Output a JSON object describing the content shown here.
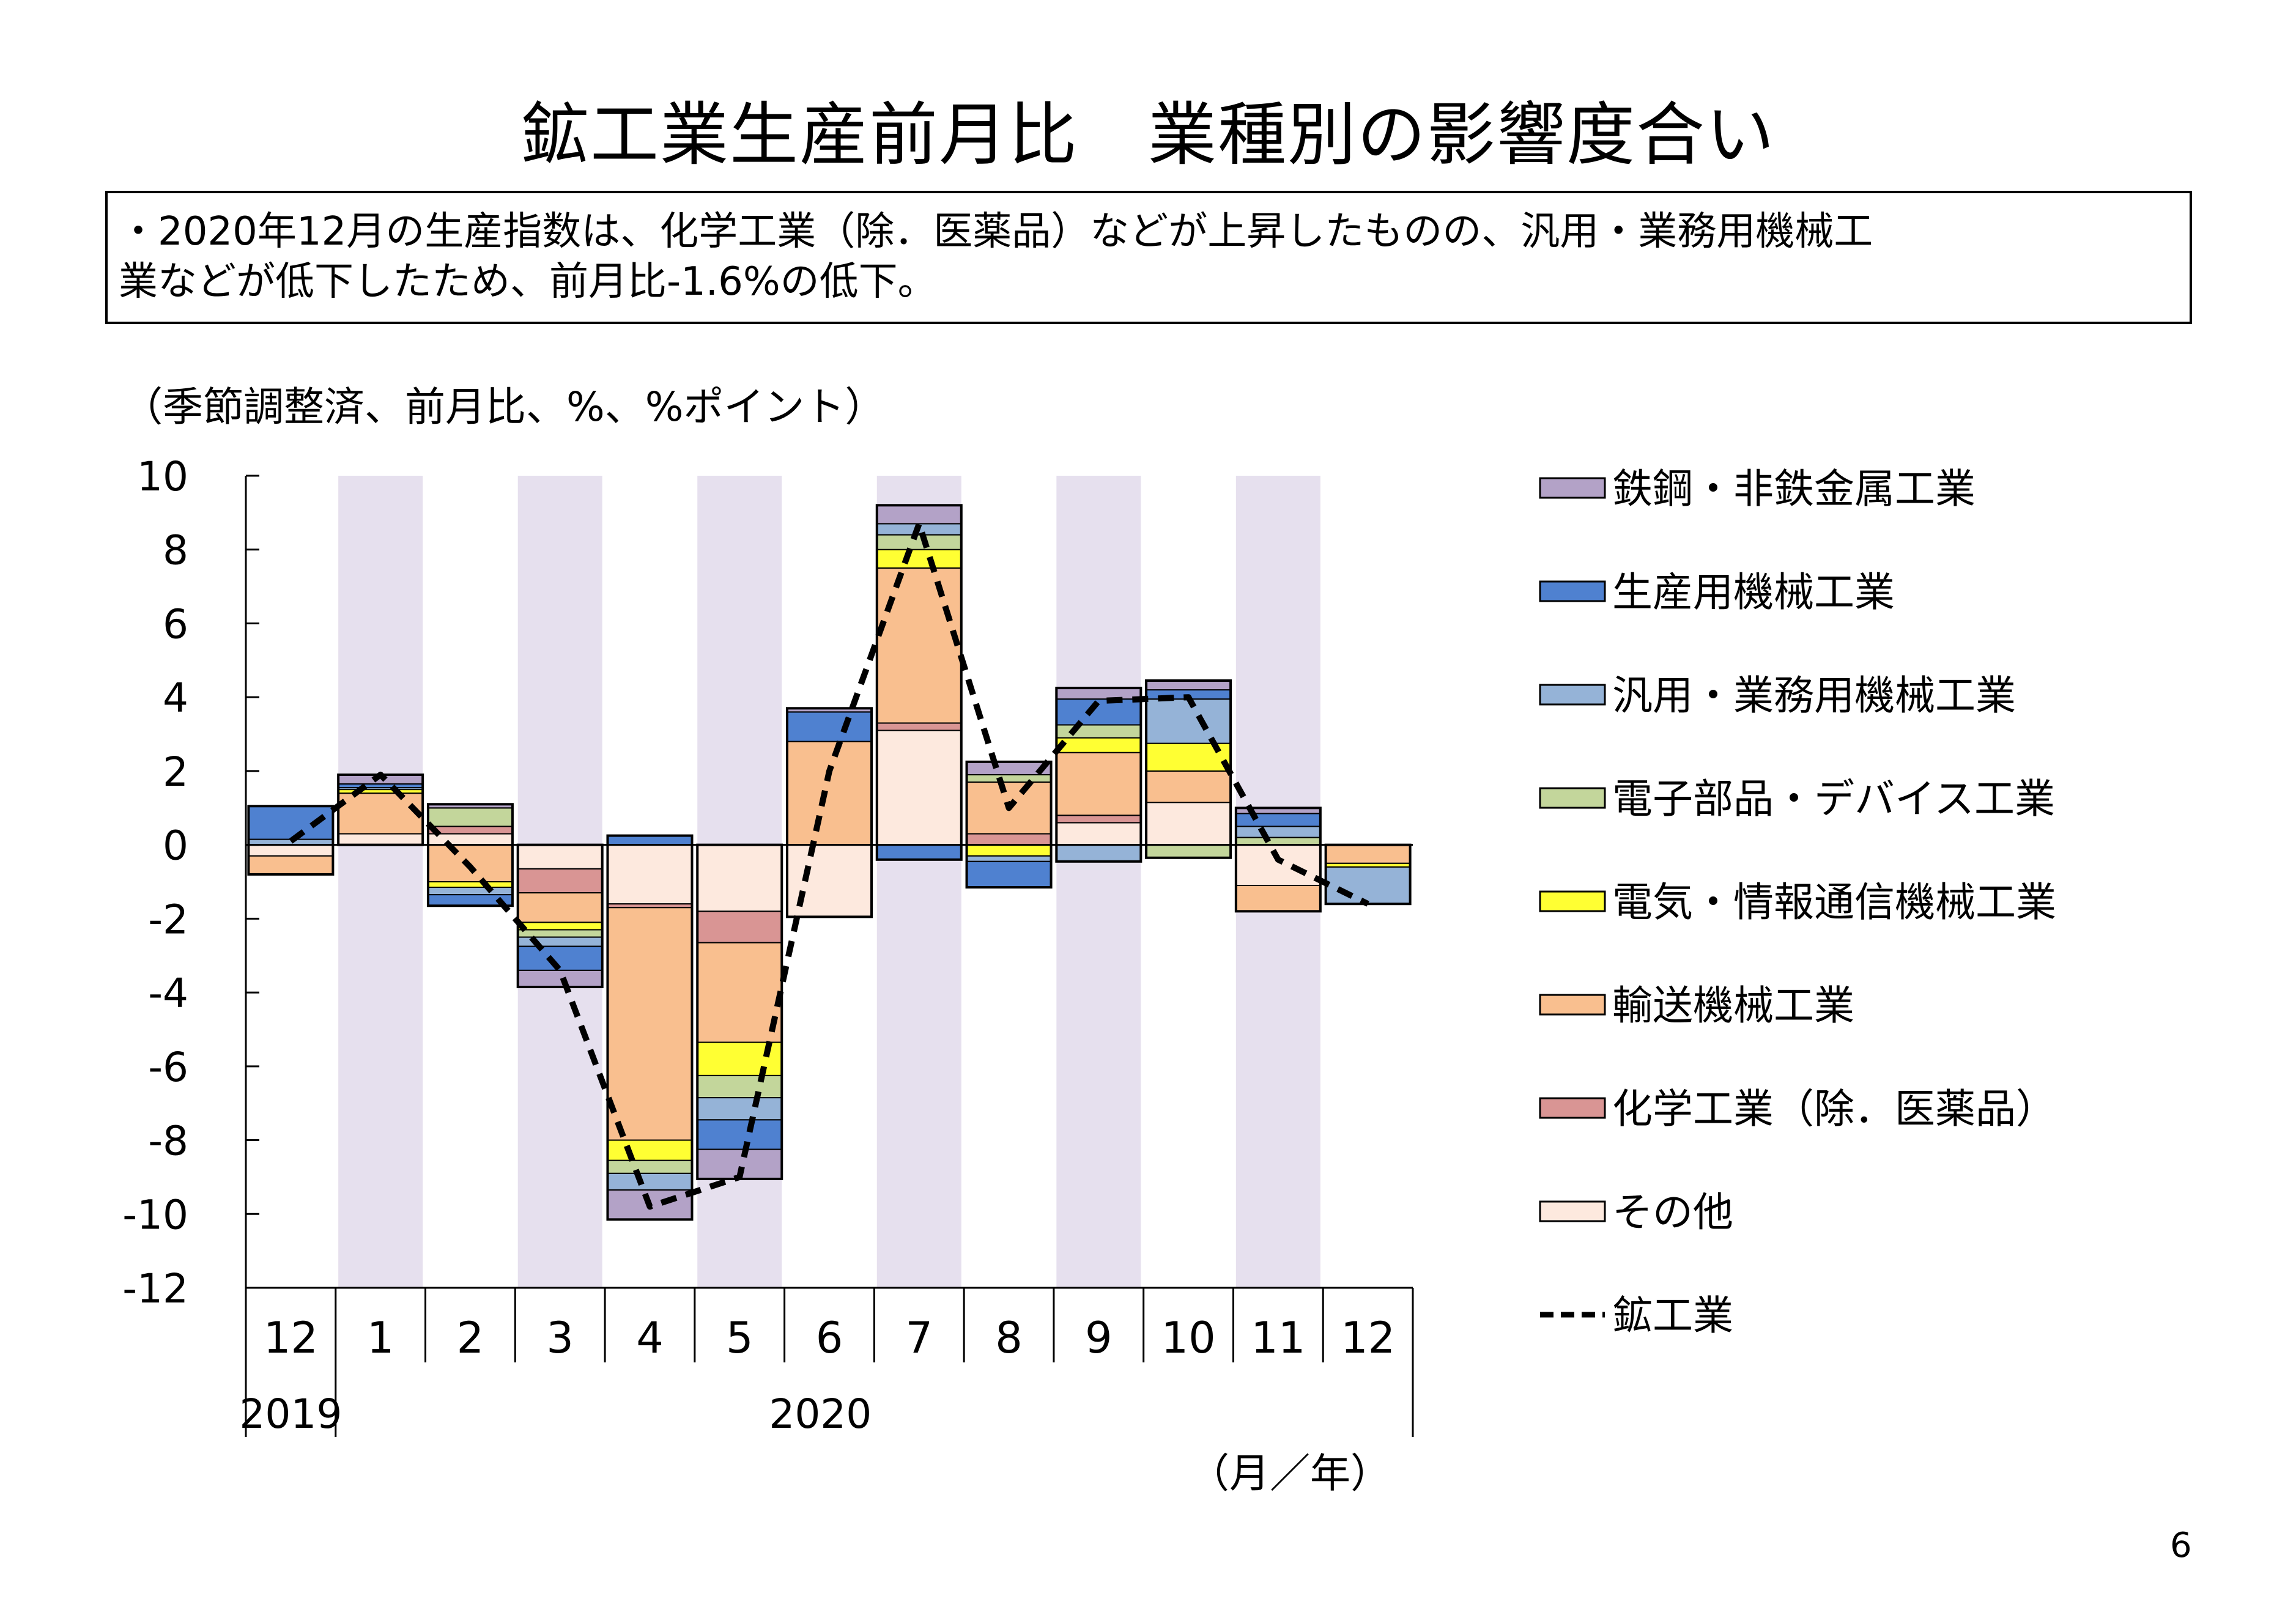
{
  "title": "鉱工業生産前月比　業種別の影響度合い",
  "summary_line1": "・2020年12月の生産指数は、化学工業（除．医薬品）などが上昇したものの、汎用・業務用機械工",
  "summary_line2": "業などが低下したため、前月比‑1.6%の低下。",
  "units_note": "（季節調整済、前月比、%、%ポイント）",
  "page_number": "6",
  "chart_data": {
    "type": "bar",
    "stacked": true,
    "categories": [
      "12",
      "1",
      "2",
      "3",
      "4",
      "5",
      "6",
      "7",
      "8",
      "9",
      "10",
      "11",
      "12"
    ],
    "year_labels": [
      {
        "label": "2019",
        "start": 0,
        "end": 0
      },
      {
        "label": "2020",
        "start": 1,
        "end": 12
      }
    ],
    "x_unit_label": "（月／年）",
    "ylim": [
      -12,
      10
    ],
    "yticks": [
      10,
      8,
      6,
      4,
      2,
      0,
      -2,
      -4,
      -6,
      -8,
      -10,
      -12
    ],
    "ytick_labels": [
      "10",
      "8",
      "6",
      "4",
      "2",
      "0",
      "‑2",
      "‑4",
      "‑6",
      "‑8",
      "‑10",
      "‑12"
    ],
    "shaded_columns": [
      1,
      3,
      5,
      7,
      9,
      11
    ],
    "shade_color": "#e6e0ee",
    "legend_position": "right",
    "series": [
      {
        "name": "その他",
        "color": "#fde9de",
        "values": [
          -0.3,
          0.3,
          0.3,
          -0.65,
          -1.6,
          -1.8,
          -1.95,
          3.1,
          0.0,
          0.6,
          1.15,
          -1.1,
          0.0
        ]
      },
      {
        "name": "化学工業（除．医薬品）",
        "color": "#d99594",
        "values": [
          0.0,
          0.0,
          0.2,
          -0.65,
          -0.1,
          -0.85,
          0.0,
          0.2,
          0.3,
          0.2,
          0.0,
          0.0,
          0.0
        ]
      },
      {
        "name": "輸送機械工業",
        "color": "#f9bf8f",
        "values": [
          -0.5,
          1.1,
          -1.0,
          -0.8,
          -6.3,
          -2.7,
          2.8,
          4.2,
          1.4,
          1.7,
          0.85,
          -0.7,
          -0.5
        ]
      },
      {
        "name": "電気・情報通信機械工業",
        "color": "#ffff33",
        "values": [
          0.0,
          0.1,
          -0.15,
          -0.2,
          -0.55,
          -0.9,
          0.0,
          0.5,
          -0.3,
          0.4,
          0.75,
          0.0,
          -0.1
        ]
      },
      {
        "name": "電子部品・デバイス工業",
        "color": "#c3d69b",
        "values": [
          0.0,
          0.0,
          0.5,
          -0.2,
          -0.35,
          -0.6,
          0.0,
          0.4,
          0.2,
          0.35,
          -0.35,
          0.2,
          0.0
        ]
      },
      {
        "name": "汎用・業務用機械工業",
        "color": "#95b3d7",
        "values": [
          0.15,
          0.05,
          -0.2,
          -0.25,
          -0.45,
          -0.6,
          0.0,
          0.3,
          -0.15,
          -0.45,
          1.2,
          0.3,
          -1.0
        ]
      },
      {
        "name": "生産用機械工業",
        "color": "#4f81d0",
        "values": [
          0.9,
          0.1,
          -0.3,
          -0.65,
          0.25,
          -0.8,
          0.8,
          -0.4,
          -0.7,
          0.7,
          0.25,
          0.35,
          0.0
        ]
      },
      {
        "name": "鉄鋼・非鉄金属工業",
        "color": "#b3a2c7",
        "values": [
          0.0,
          0.25,
          0.1,
          -0.45,
          -0.8,
          -0.8,
          0.1,
          0.5,
          0.35,
          0.3,
          0.25,
          0.15,
          0.0
        ]
      }
    ],
    "line": {
      "name": "鉱工業",
      "style": "dashed",
      "color": "#000000",
      "values": [
        0.1,
        1.9,
        -0.6,
        -3.4,
        -9.8,
        -9.0,
        2.0,
        8.7,
        1.0,
        3.9,
        4.0,
        -0.4,
        -1.6
      ]
    },
    "legend_order": [
      "鉄鋼・非鉄金属工業",
      "生産用機械工業",
      "汎用・業務用機械工業",
      "電子部品・デバイス工業",
      "電気・情報通信機械工業",
      "輸送機械工業",
      "化学工業（除．医薬品）",
      "その他",
      "鉱工業"
    ]
  }
}
